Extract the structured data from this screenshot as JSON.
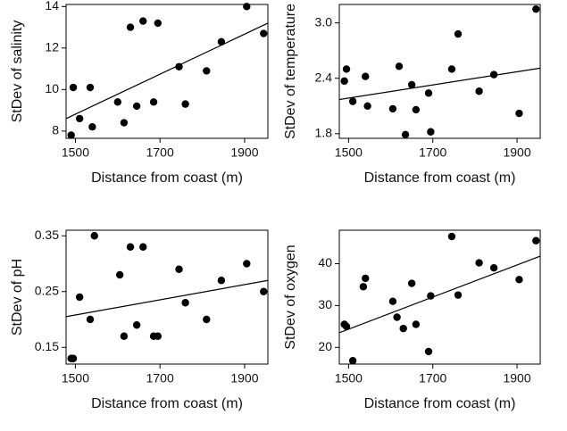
{
  "chart_data": [
    {
      "type": "scatter",
      "xlabel": "Distance from coast (m)",
      "ylabel": "StDev of salinity",
      "x": [
        1490,
        1495,
        1510,
        1535,
        1540,
        1600,
        1615,
        1630,
        1645,
        1660,
        1685,
        1695,
        1745,
        1760,
        1810,
        1845,
        1905,
        1945
      ],
      "values": [
        7.8,
        10.1,
        8.6,
        10.1,
        8.2,
        9.4,
        8.4,
        13.0,
        9.2,
        13.3,
        9.4,
        13.2,
        11.1,
        9.3,
        10.9,
        12.3,
        14.0,
        12.7
      ],
      "color": "#000000",
      "xlim": [
        1478,
        1955
      ],
      "xticks": [
        1500,
        1700,
        1900
      ],
      "ylim": [
        7.65,
        14.1
      ],
      "yticks": [
        8,
        10,
        12,
        14
      ],
      "fit": {
        "x": [
          1478,
          1955
        ],
        "y": [
          8.6,
          13.2
        ]
      }
    },
    {
      "type": "scatter",
      "xlabel": "Distance from coast (m)",
      "ylabel": "StDev of temperature",
      "x": [
        1490,
        1495,
        1510,
        1540,
        1545,
        1605,
        1620,
        1635,
        1650,
        1660,
        1690,
        1695,
        1745,
        1760,
        1810,
        1845,
        1905,
        1945
      ],
      "values": [
        2.37,
        2.5,
        2.15,
        2.42,
        2.1,
        2.07,
        2.53,
        1.79,
        2.33,
        2.06,
        2.24,
        1.82,
        2.5,
        2.88,
        2.26,
        2.44,
        2.02,
        3.15
      ],
      "color": "#000000",
      "xlim": [
        1478,
        1955
      ],
      "xticks": [
        1500,
        1700,
        1900
      ],
      "ylim": [
        1.75,
        3.2
      ],
      "yticks": [
        1.8,
        2.4,
        {
          "value": 3,
          "label": "3.0"
        }
      ],
      "fit": {
        "x": [
          1478,
          1955
        ],
        "y": [
          2.17,
          2.51
        ]
      }
    },
    {
      "type": "scatter",
      "xlabel": "Distance from coast (m)",
      "ylabel": "StDev of pH",
      "x": [
        1490,
        1495,
        1510,
        1535,
        1545,
        1605,
        1615,
        1630,
        1645,
        1660,
        1685,
        1695,
        1745,
        1760,
        1810,
        1845,
        1905,
        1945
      ],
      "values": [
        0.13,
        0.13,
        0.24,
        0.2,
        0.35,
        0.28,
        0.17,
        0.33,
        0.19,
        0.33,
        0.17,
        0.17,
        0.29,
        0.23,
        0.2,
        0.27,
        0.3,
        0.25
      ],
      "color": "#000000",
      "xlim": [
        1478,
        1955
      ],
      "xticks": [
        1500,
        1700,
        1900
      ],
      "ylim": [
        0.12,
        0.36
      ],
      "yticks": [
        {
          "value": 0.15,
          "label": "0.15"
        },
        {
          "value": 0.25,
          "label": "0.25"
        },
        {
          "value": 0.35,
          "label": "0.35"
        }
      ],
      "fit": {
        "x": [
          1478,
          1955
        ],
        "y": [
          0.205,
          0.27
        ]
      }
    },
    {
      "type": "scatter",
      "xlabel": "Distance from coast (m)",
      "ylabel": "StDev of oxygen",
      "x": [
        1490,
        1495,
        1510,
        1535,
        1540,
        1605,
        1615,
        1630,
        1650,
        1660,
        1690,
        1695,
        1745,
        1760,
        1810,
        1845,
        1905,
        1945
      ],
      "values": [
        25.5,
        25,
        16.8,
        34.5,
        36.5,
        31,
        27.2,
        24.5,
        35.3,
        25.5,
        19,
        32.3,
        46.5,
        32.5,
        40.2,
        39,
        36.2,
        45.5
      ],
      "color": "#000000",
      "xlim": [
        1478,
        1955
      ],
      "xticks": [
        1500,
        1700,
        1900
      ],
      "ylim": [
        16,
        48
      ],
      "yticks": [
        20,
        30,
        40
      ],
      "fit": {
        "x": [
          1478,
          1955
        ],
        "y": [
          23.5,
          41.8
        ]
      }
    }
  ]
}
